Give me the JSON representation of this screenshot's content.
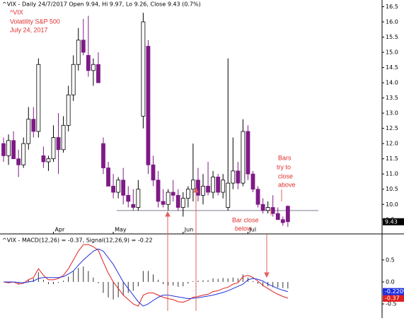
{
  "chart_data": [
    {
      "type": "candlestick",
      "title": "^VIX - Daily 24/7/2017 Open 9.94, Hi 9.97, Lo 9.26, Close 9.43 (0.7%)",
      "annotations": [
        "^VIX",
        "Volatility S&P 500",
        "July 24, 2017",
        "Bars",
        "try to",
        "close",
        "above",
        "Bar close",
        "below"
      ],
      "categories": [
        null,
        null,
        null,
        null,
        null,
        null,
        null,
        null,
        null,
        null,
        "Apr",
        null,
        null,
        null,
        null,
        null,
        null,
        null,
        null,
        null,
        null,
        null,
        "May",
        null,
        null,
        null,
        null,
        null,
        null,
        null,
        null,
        null,
        null,
        null,
        null,
        null,
        "Jun",
        null,
        null,
        null,
        null,
        null,
        null,
        null,
        null,
        null,
        null,
        null,
        null,
        "Jul",
        null,
        null,
        null,
        null,
        null,
        null,
        null,
        null
      ],
      "open": [
        12.0,
        11.6,
        12.1,
        11.5,
        11.3,
        12.0,
        12.8,
        12.4,
        11.6,
        11.4,
        11.5,
        12.2,
        11.8,
        12.6,
        13.6,
        14.6,
        15.4,
        14.9,
        14.4,
        14.6,
        12.0,
        11.2,
        10.6,
        10.4,
        10.8,
        10.3,
        10.0,
        9.9,
        12.9,
        15.2,
        11.3,
        10.8,
        10.1,
        10.0,
        10.4,
        10.3,
        9.9,
        10.2,
        10.5,
        10.8,
        10.3,
        10.6,
        10.4,
        10.9,
        10.4,
        9.9,
        10.7,
        11.1,
        10.7,
        12.4,
        11.0,
        10.5,
        10.0,
        9.8,
        9.9,
        9.7,
        9.5,
        9.94
      ],
      "high": [
        12.2,
        12.3,
        12.4,
        11.8,
        12.2,
        13.2,
        13.2,
        14.8,
        11.9,
        11.6,
        12.6,
        13.0,
        12.9,
        13.9,
        14.9,
        15.8,
        16.1,
        16.2,
        14.8,
        15.0,
        12.2,
        11.4,
        11.0,
        10.9,
        11.2,
        10.6,
        10.5,
        10.8,
        16.3,
        15.4,
        11.6,
        11.1,
        10.5,
        10.5,
        10.8,
        10.5,
        10.4,
        10.6,
        12.0,
        11.2,
        11.0,
        11.4,
        11.1,
        11.0,
        11.0,
        14.8,
        12.2,
        11.4,
        12.8,
        12.6,
        11.1,
        10.6,
        10.2,
        10.1,
        10.3,
        9.9,
        9.6,
        9.97
      ],
      "low": [
        11.4,
        11.3,
        11.5,
        10.9,
        11.2,
        11.8,
        12.2,
        12.2,
        11.2,
        11.1,
        11.4,
        11.0,
        11.7,
        12.4,
        13.4,
        14.4,
        14.9,
        14.2,
        13.9,
        14.0,
        11.0,
        10.6,
        10.2,
        10.2,
        10.0,
        9.9,
        9.8,
        9.8,
        12.5,
        11.0,
        10.6,
        9.9,
        9.9,
        9.8,
        10.1,
        9.8,
        9.6,
        9.9,
        10.1,
        10.1,
        10.0,
        10.3,
        10.2,
        10.3,
        10.2,
        9.8,
        10.5,
        10.5,
        10.6,
        10.8,
        10.4,
        9.9,
        9.7,
        9.7,
        9.6,
        9.5,
        9.3,
        9.26
      ],
      "close": [
        11.6,
        12.1,
        11.5,
        11.3,
        12.0,
        12.8,
        12.4,
        14.6,
        11.4,
        11.5,
        12.2,
        11.8,
        12.6,
        13.6,
        14.6,
        15.4,
        15.0,
        14.4,
        14.6,
        14.0,
        11.2,
        10.6,
        10.4,
        10.8,
        10.3,
        10.1,
        9.9,
        10.5,
        16.0,
        11.3,
        10.8,
        10.1,
        10.0,
        10.4,
        10.3,
        9.9,
        10.2,
        10.5,
        10.8,
        10.3,
        10.6,
        10.4,
        10.9,
        10.4,
        10.8,
        10.7,
        11.1,
        10.7,
        12.4,
        11.0,
        10.5,
        10.0,
        9.8,
        9.9,
        9.7,
        9.5,
        9.4,
        9.43
      ],
      "up_color": "#ffffff",
      "down_color": "#7e1a86",
      "hline": 9.8,
      "hline_color": "#a9a9b8",
      "last_label": "9.43",
      "ylim": [
        9.1,
        16.65
      ],
      "yticks": [
        9.5,
        {
          "value": 10,
          "label": "10.0"
        },
        10.5,
        {
          "value": 11,
          "label": "11.0"
        },
        11.5,
        {
          "value": 12,
          "label": "12.0"
        },
        12.5,
        {
          "value": 13,
          "label": "13.0"
        },
        13.5,
        {
          "value": 14,
          "label": "14.0"
        },
        14.5,
        {
          "value": 15,
          "label": "15.0"
        },
        15.5,
        {
          "value": 16,
          "label": "16.0"
        },
        16.5
      ]
    },
    {
      "type": "macd",
      "title": "^VIX - MACD(12,26) = -0.37, Signal(12,26,9) = -0.22",
      "series": [
        {
          "name": "MACD",
          "color": "#e02020",
          "values": [
            0.0,
            -0.02,
            0.0,
            -0.05,
            -0.03,
            0.05,
            0.1,
            0.3,
            0.15,
            0.05,
            0.05,
            0.08,
            0.15,
            0.3,
            0.5,
            0.7,
            0.85,
            0.85,
            0.8,
            0.72,
            0.45,
            0.2,
            0.0,
            -0.15,
            -0.3,
            -0.4,
            -0.5,
            -0.55,
            -0.3,
            -0.25,
            -0.25,
            -0.3,
            -0.35,
            -0.38,
            -0.4,
            -0.45,
            -0.46,
            -0.42,
            -0.35,
            -0.33,
            -0.3,
            -0.28,
            -0.22,
            -0.2,
            -0.15,
            -0.12,
            -0.05,
            -0.02,
            0.12,
            0.15,
            0.1,
            0.02,
            -0.08,
            -0.15,
            -0.22,
            -0.28,
            -0.33,
            -0.37
          ],
          "last_label": "-0.37"
        },
        {
          "name": "Signal",
          "color": "#2030e0",
          "values": [
            0.0,
            0.0,
            0.0,
            -0.01,
            -0.02,
            0.0,
            0.02,
            0.08,
            0.1,
            0.1,
            0.1,
            0.1,
            0.12,
            0.18,
            0.25,
            0.38,
            0.5,
            0.6,
            0.7,
            0.75,
            0.7,
            0.55,
            0.4,
            0.2,
            0.0,
            -0.15,
            -0.3,
            -0.45,
            -0.55,
            -0.5,
            -0.42,
            -0.35,
            -0.3,
            -0.3,
            -0.32,
            -0.34,
            -0.36,
            -0.38,
            -0.37,
            -0.36,
            -0.34,
            -0.32,
            -0.3,
            -0.27,
            -0.24,
            -0.2,
            -0.15,
            -0.1,
            -0.05,
            0.05,
            0.08,
            0.06,
            0.02,
            -0.05,
            -0.1,
            -0.15,
            -0.19,
            -0.22
          ],
          "last_label": "-0.22096"
        }
      ],
      "histogram": [
        0.0,
        -0.02,
        0.0,
        -0.04,
        -0.01,
        0.05,
        0.08,
        0.22,
        0.05,
        -0.05,
        -0.05,
        -0.02,
        0.03,
        0.12,
        0.25,
        0.32,
        0.35,
        0.25,
        0.1,
        -0.03,
        -0.25,
        -0.35,
        -0.4,
        -0.35,
        -0.3,
        -0.25,
        -0.2,
        -0.1,
        0.25,
        0.25,
        0.17,
        0.05,
        -0.05,
        -0.08,
        -0.08,
        -0.11,
        -0.1,
        -0.04,
        0.02,
        0.03,
        0.04,
        0.04,
        0.08,
        0.07,
        0.09,
        0.08,
        0.1,
        0.08,
        0.17,
        0.1,
        0.02,
        -0.04,
        -0.1,
        -0.1,
        -0.12,
        -0.13,
        -0.14,
        -0.15
      ],
      "histogram_color": "#333333",
      "ylim": [
        -0.82,
        1.06
      ],
      "yticks": [
        -0.5,
        {
          "value": 0,
          "label": "0.0"
        },
        0.5
      ]
    }
  ]
}
